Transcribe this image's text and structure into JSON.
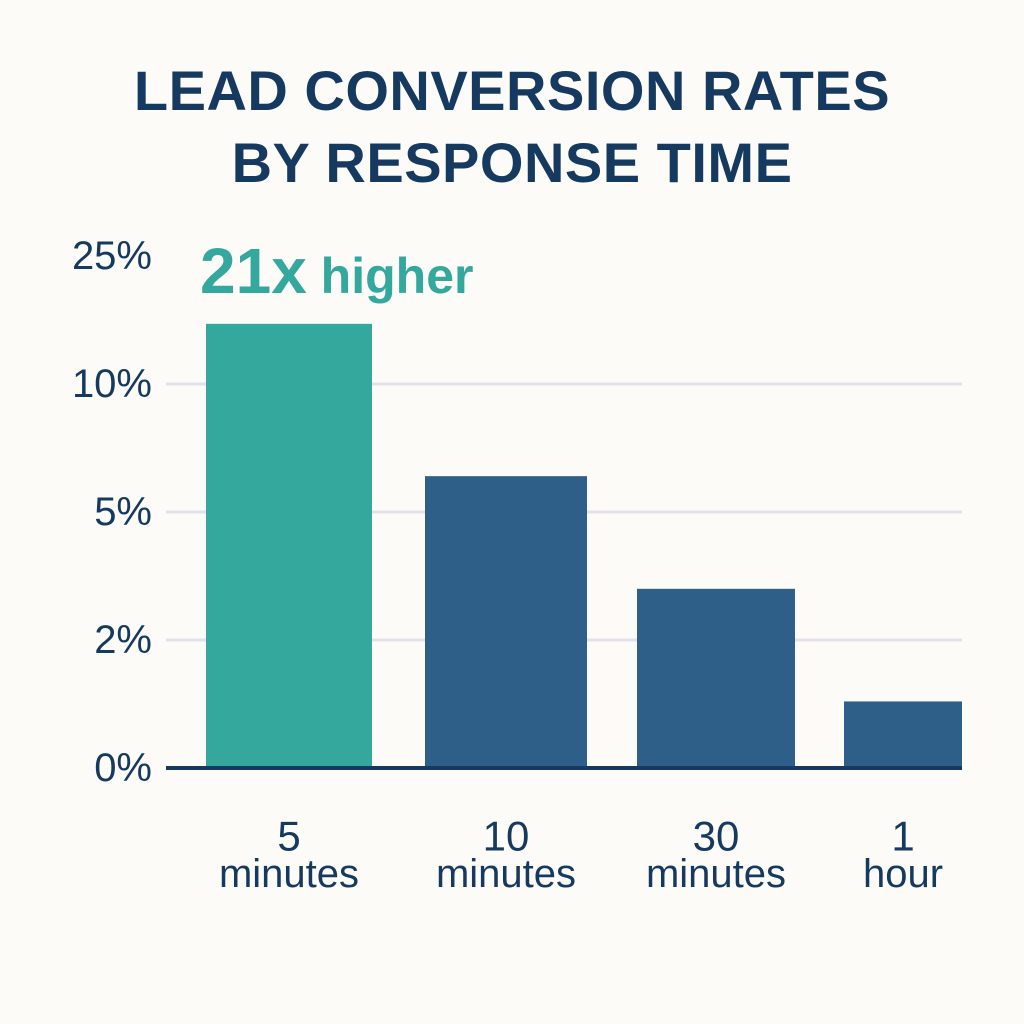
{
  "colors": {
    "background": "#fcfbf7",
    "title": "#163a5f",
    "highlight_bar": "#35a89e",
    "default_bar": "#2d5f88",
    "axis": "#163a5f",
    "grid": "#dfe3e8",
    "annotation": "#35a89e"
  },
  "chart_data": {
    "type": "bar",
    "title_lines": [
      "LEAD CONVERSION RATES",
      "BY RESPONSE TIME"
    ],
    "xlabel": "",
    "ylabel": "",
    "y_ticks": [
      "0%",
      "2%",
      "5%",
      "10%",
      "25%"
    ],
    "y_scale": "categorical-spaced",
    "grid": true,
    "categories": [
      {
        "line1": "5",
        "line2": "minutes"
      },
      {
        "line1": "10",
        "line2": "minutes"
      },
      {
        "line1": "30",
        "line2": "minutes"
      },
      {
        "line1": "1",
        "line2": "hour"
      }
    ],
    "values_tick_units": [
      3.47,
      2.28,
      1.4,
      0.52
    ],
    "highlight_index": 0,
    "annotation": "21x higher"
  }
}
